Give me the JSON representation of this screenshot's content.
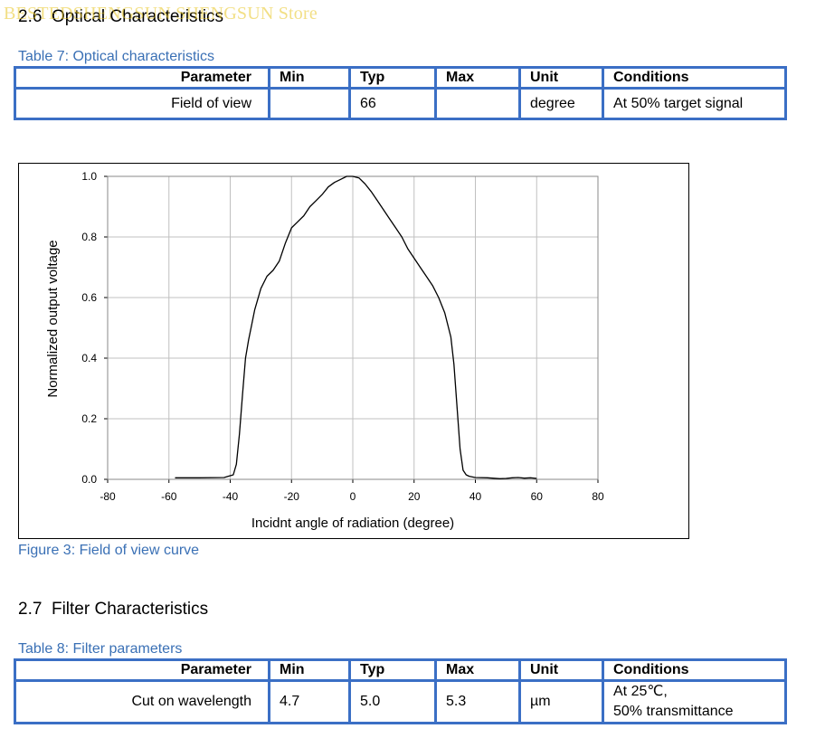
{
  "watermark": "BESTEDSHENGSUN SHENGSUN Store",
  "section_optical": {
    "number": "2.6",
    "title": "Optical Characteristics"
  },
  "table7": {
    "caption": "Table 7: Optical characteristics",
    "headers": [
      "Parameter",
      "Min",
      "Typ",
      "Max",
      "Unit",
      "Conditions"
    ],
    "rows": [
      [
        "Field of view",
        "",
        "66",
        "",
        "degree",
        "At 50% target signal"
      ]
    ]
  },
  "figure3": {
    "caption": "Figure 3: Field of view curve"
  },
  "chart_data": {
    "type": "line",
    "title": "",
    "xlabel": "Incidnt angle of radiation (degree)",
    "ylabel": "Normalized output voltage",
    "xlim": [
      -80,
      80
    ],
    "ylim": [
      0,
      1.0
    ],
    "xticks": [
      -80,
      -60,
      -40,
      -20,
      0,
      20,
      40,
      60,
      80
    ],
    "xtick_labels": [
      "-80",
      "-60",
      "-40",
      "-20",
      "0",
      "20",
      "40",
      "60",
      "80"
    ],
    "yticks": [
      0,
      0.2,
      0.4,
      0.6,
      0.8,
      1.0
    ],
    "ytick_labels": [
      "0.0",
      "0.2",
      "0.4",
      "0.6",
      "0.8",
      "1.0"
    ],
    "grid": true,
    "series": [
      {
        "color": "#000000",
        "x": [
          -58,
          -50,
          -42,
          -39,
          -38,
          -37,
          -36,
          -35,
          -34,
          -33,
          -32,
          -30,
          -28,
          -26,
          -24,
          -22,
          -20,
          -18,
          -16,
          -14,
          -12,
          -10,
          -8,
          -6,
          -4,
          -2,
          0,
          2,
          4,
          6,
          8,
          10,
          12,
          14,
          16,
          18,
          20,
          22,
          24,
          26,
          28,
          30,
          32,
          33,
          34,
          35,
          36,
          37,
          38,
          40,
          44,
          48,
          50,
          52,
          54,
          56,
          58,
          60
        ],
        "y": [
          0.005,
          0.005,
          0.006,
          0.015,
          0.05,
          0.15,
          0.28,
          0.4,
          0.46,
          0.51,
          0.56,
          0.63,
          0.67,
          0.69,
          0.72,
          0.78,
          0.83,
          0.85,
          0.87,
          0.9,
          0.92,
          0.94,
          0.965,
          0.98,
          0.99,
          1.0,
          1.0,
          0.995,
          0.975,
          0.95,
          0.92,
          0.89,
          0.86,
          0.83,
          0.8,
          0.76,
          0.73,
          0.7,
          0.67,
          0.64,
          0.6,
          0.55,
          0.47,
          0.38,
          0.24,
          0.1,
          0.03,
          0.015,
          0.01,
          0.006,
          0.005,
          0.002,
          0.003,
          0.005,
          0.006,
          0.004,
          0.005,
          0.003
        ]
      }
    ]
  },
  "section_filter": {
    "number": "2.7",
    "title": "Filter Characteristics"
  },
  "table8": {
    "caption": "Table 8: Filter parameters",
    "headers": [
      "Parameter",
      "Min",
      "Typ",
      "Max",
      "Unit",
      "Conditions"
    ],
    "rows": [
      [
        "Cut on wavelength",
        "4.7",
        "5.0",
        "5.3",
        "µm",
        "At 25℃,"
      ]
    ],
    "conditions_line2": "50% transmittance"
  },
  "colors": {
    "table_border": "#3b6fc5",
    "caption": "#3a70b5",
    "grid": "#c0c0c0"
  }
}
